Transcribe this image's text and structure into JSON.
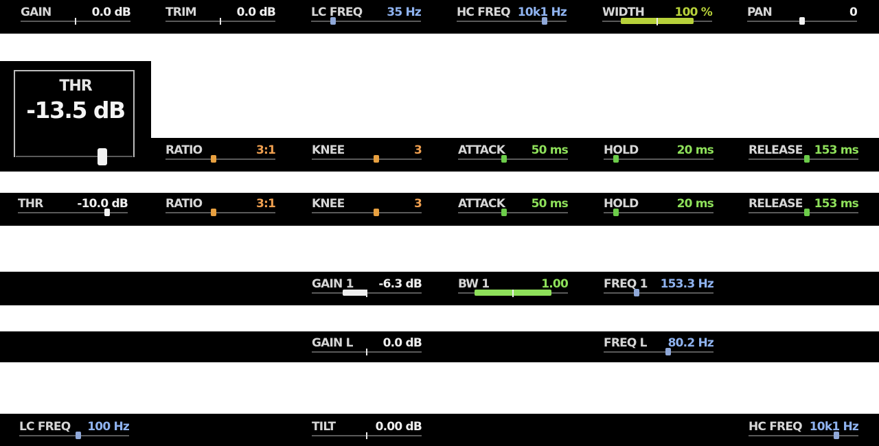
{
  "colors": {
    "white": "#efefef",
    "blue": "#8fb3f0",
    "green": "#8ee05a",
    "orange": "#f0a050",
    "lime": "#b7d13a",
    "handle_blue": "#8fa8d8",
    "handle_orange": "#e8a040",
    "handle_green": "#6ccc4a",
    "handle_white": "#f2f2f2"
  },
  "thr_large": {
    "label": "THR",
    "value": "-13.5 dB"
  },
  "rows": [
    {
      "params": [
        {
          "label": "GAIN",
          "value": "0.0 dB",
          "color": "white",
          "level": 0.5,
          "style": "tick"
        },
        {
          "label": "TRIM",
          "value": "0.0 dB",
          "color": "white",
          "level": 0.5,
          "style": "tick"
        },
        {
          "label": "LC FREQ",
          "value": "35 Hz",
          "color": "blue",
          "level": 0.2,
          "style": "handle",
          "handle": "handle_blue"
        },
        {
          "label": "HC FREQ",
          "value": "10k1 Hz",
          "color": "blue",
          "level": 0.8,
          "style": "handle",
          "handle": "handle_blue"
        },
        {
          "label": "WIDTH",
          "value": "100 %",
          "color": "lime",
          "level": 0.5,
          "style": "fill",
          "fill_from": 0.17,
          "fill_to": 0.83,
          "fill_color": "lime"
        },
        {
          "label": "PAN",
          "value": "0",
          "color": "white",
          "level": 0.5,
          "style": "handle",
          "handle": "handle_white"
        }
      ]
    },
    {
      "params": [
        {
          "label": "RATIO",
          "value": "3:1",
          "color": "orange",
          "level": 0.44,
          "style": "handle",
          "handle": "handle_orange"
        },
        {
          "label": "KNEE",
          "value": "3",
          "color": "orange",
          "level": 0.59,
          "style": "handle",
          "handle": "handle_orange"
        },
        {
          "label": "ATTACK",
          "value": "50 ms",
          "color": "green",
          "level": 0.42,
          "style": "handle",
          "handle": "handle_green"
        },
        {
          "label": "HOLD",
          "value": "20 ms",
          "color": "green",
          "level": 0.11,
          "style": "handle",
          "handle": "handle_green"
        },
        {
          "label": "RELEASE",
          "value": "153 ms",
          "color": "green",
          "level": 0.53,
          "style": "handle",
          "handle": "handle_green"
        }
      ]
    },
    {
      "params": [
        {
          "label": "THR",
          "value": "-10.0 dB",
          "color": "white",
          "level": 0.81,
          "style": "handle",
          "handle": "handle_white"
        },
        {
          "label": "RATIO",
          "value": "3:1",
          "color": "orange",
          "level": 0.44,
          "style": "handle",
          "handle": "handle_orange"
        },
        {
          "label": "KNEE",
          "value": "3",
          "color": "orange",
          "level": 0.59,
          "style": "handle",
          "handle": "handle_orange"
        },
        {
          "label": "ATTACK",
          "value": "50 ms",
          "color": "green",
          "level": 0.42,
          "style": "handle",
          "handle": "handle_green"
        },
        {
          "label": "HOLD",
          "value": "20 ms",
          "color": "green",
          "level": 0.11,
          "style": "handle",
          "handle": "handle_green"
        },
        {
          "label": "RELEASE",
          "value": "153 ms",
          "color": "green",
          "level": 0.53,
          "style": "handle",
          "handle": "handle_green"
        }
      ]
    },
    {
      "params": [
        {
          "label": "GAIN 1",
          "value": "-6.3 dB",
          "color": "white",
          "level": 0.5,
          "style": "fill",
          "fill_from": 0.28,
          "fill_to": 0.5,
          "fill_color": "white"
        },
        {
          "label": "BW 1",
          "value": "1.00",
          "color": "green",
          "level": 0.5,
          "style": "fill",
          "fill_from": 0.15,
          "fill_to": 0.85,
          "fill_color": "green"
        },
        {
          "label": "FREQ 1",
          "value": "153.3 Hz",
          "color": "blue",
          "level": 0.3,
          "style": "handle",
          "handle": "handle_blue"
        }
      ]
    },
    {
      "params": [
        {
          "label": "GAIN L",
          "value": "0.0 dB",
          "color": "white",
          "level": 0.5,
          "style": "tick"
        },
        {
          "label": "FREQ L",
          "value": "80.2 Hz",
          "color": "blue",
          "level": 0.59,
          "style": "handle",
          "handle": "handle_blue"
        }
      ]
    },
    {
      "params": [
        {
          "label": "LC FREQ",
          "value": "100 Hz",
          "color": "blue",
          "level": 0.54,
          "style": "handle",
          "handle": "handle_blue"
        },
        {
          "label": "TILT",
          "value": "0.00 dB",
          "color": "white",
          "level": 0.5,
          "style": "tick"
        },
        {
          "label": "HC FREQ",
          "value": "10k1 Hz",
          "color": "blue",
          "level": 0.8,
          "style": "handle",
          "handle": "handle_blue"
        }
      ]
    }
  ]
}
